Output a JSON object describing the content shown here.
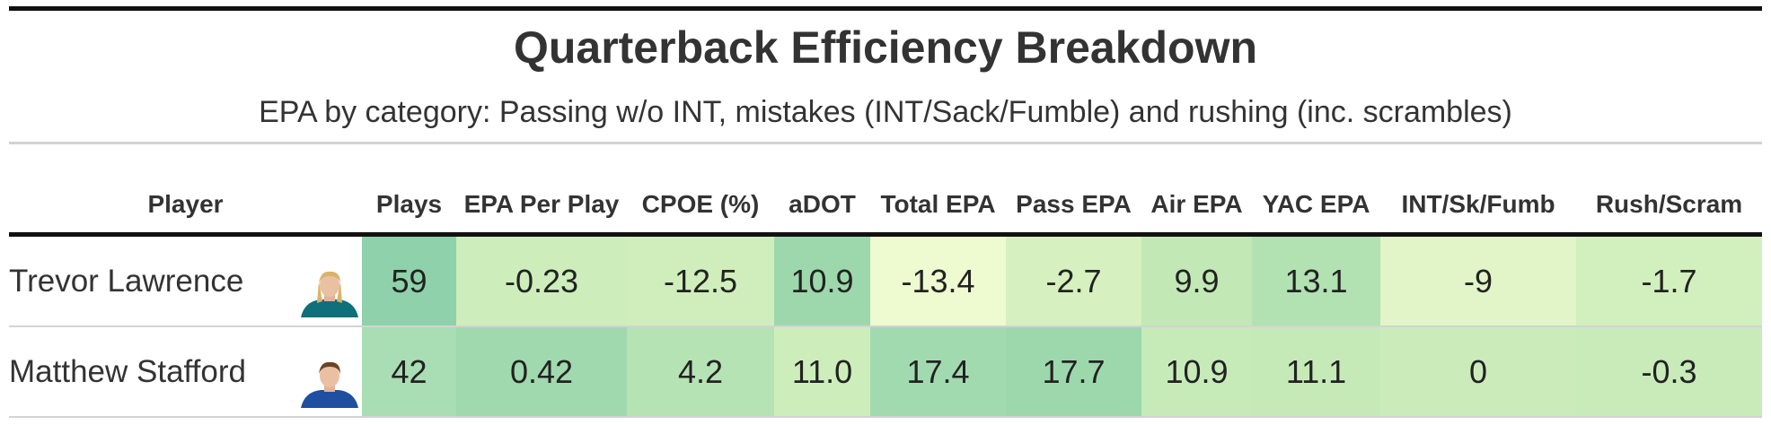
{
  "header": {
    "title": "Quarterback Efficiency Breakdown",
    "subtitle": "EPA by category: Passing w/o INT, mistakes (INT/Sack/Fumble) and rushing (inc. scrambles)"
  },
  "table": {
    "columns": [
      "Player",
      "Plays",
      "EPA Per Play",
      "CPOE (%)",
      "aDOT",
      "Total EPA",
      "Pass EPA",
      "Air EPA",
      "YAC EPA",
      "INT/Sk/Fumb",
      "Rush/Scram"
    ],
    "rows": [
      {
        "player": "Trevor Lawrence",
        "cells": [
          "59",
          "-0.23",
          "-12.5",
          "10.9",
          "-13.4",
          "-2.7",
          "9.9",
          "13.1",
          "-9",
          "-1.7"
        ],
        "colors": [
          "#8fd1aa",
          "#cdeebb",
          "#d0eebc",
          "#9dd8ad",
          "#eefad0",
          "#d6f0bf",
          "#c2e8b6",
          "#b2e1b2",
          "#e2f5c8",
          "#d2efbe"
        ]
      },
      {
        "player": "Matthew Stafford",
        "cells": [
          "42",
          "0.42",
          "4.2",
          "11.0",
          "17.4",
          "17.7",
          "10.9",
          "11.1",
          "0",
          "-0.3"
        ],
        "colors": [
          "#a9ddb3",
          "#a0d9ae",
          "#b5e3b4",
          "#cdeebb",
          "#a2dab0",
          "#9dd8ad",
          "#c7ebb8",
          "#c5eab7",
          "#cbecba",
          "#c8ebb9"
        ]
      }
    ]
  }
}
